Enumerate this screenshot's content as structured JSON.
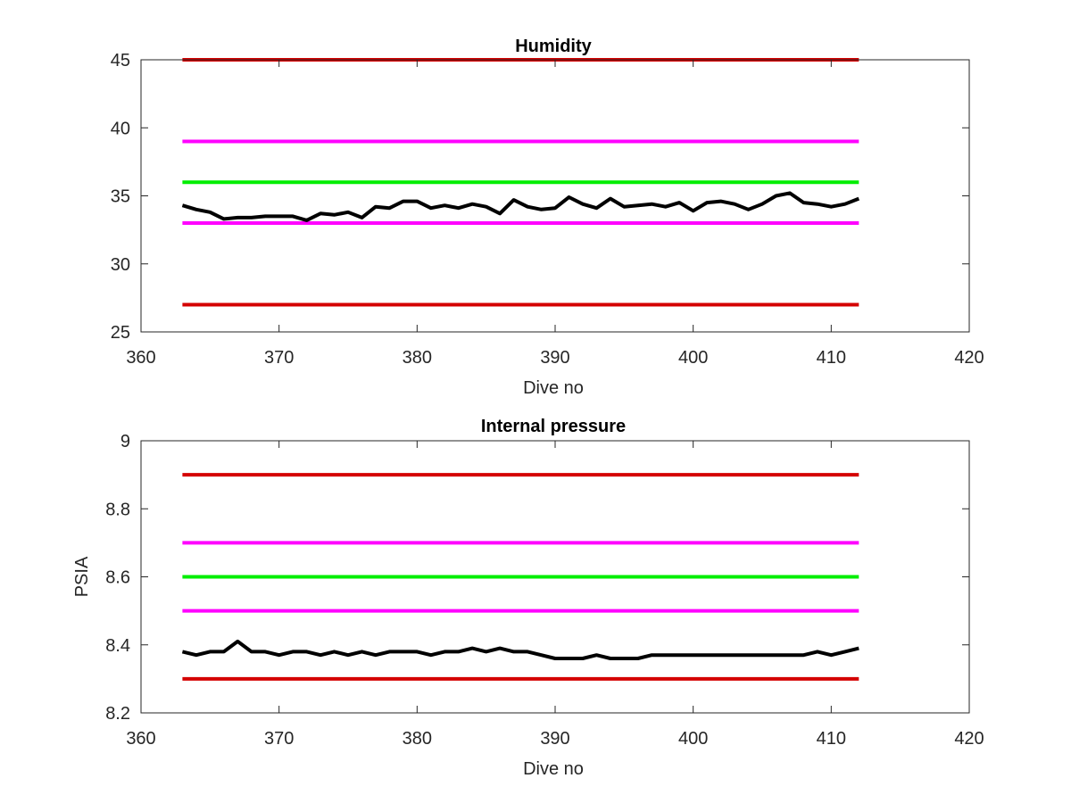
{
  "chart_data": [
    {
      "type": "line",
      "title": "Humidity",
      "xlabel": "Dive no",
      "ylabel": "",
      "xlim": [
        360,
        420
      ],
      "ylim": [
        25,
        45
      ],
      "xticks": [
        360,
        370,
        380,
        390,
        400,
        410,
        420
      ],
      "yticks": [
        25,
        30,
        35,
        40,
        45
      ],
      "grid": false,
      "series": [
        {
          "x": [
            363,
            412
          ],
          "y": [
            45,
            45
          ],
          "color": "#d40000"
        },
        {
          "x": [
            363,
            412
          ],
          "y": [
            39,
            39
          ],
          "color": "#ff00ff"
        },
        {
          "x": [
            363,
            412
          ],
          "y": [
            36,
            36
          ],
          "color": "#00ee00"
        },
        {
          "x": [
            363,
            412
          ],
          "y": [
            33,
            33
          ],
          "color": "#ff00ff"
        },
        {
          "x": [
            363,
            412
          ],
          "y": [
            27,
            27
          ],
          "color": "#d40000"
        },
        {
          "color": "#000000",
          "x": [
            363,
            364,
            365,
            366,
            367,
            368,
            369,
            370,
            371,
            372,
            373,
            374,
            375,
            376,
            377,
            378,
            379,
            380,
            381,
            382,
            383,
            384,
            385,
            386,
            387,
            388,
            389,
            390,
            391,
            392,
            393,
            394,
            395,
            396,
            397,
            398,
            399,
            400,
            401,
            402,
            403,
            404,
            405,
            406,
            407,
            408,
            409,
            410,
            411,
            412
          ],
          "y": [
            34.3,
            34.0,
            33.8,
            33.3,
            33.4,
            33.4,
            33.5,
            33.5,
            33.5,
            33.2,
            33.7,
            33.6,
            33.8,
            33.4,
            34.2,
            34.1,
            34.6,
            34.6,
            34.1,
            34.3,
            34.1,
            34.4,
            34.2,
            33.7,
            34.7,
            34.2,
            34.0,
            34.1,
            34.9,
            34.4,
            34.1,
            34.8,
            34.2,
            34.3,
            34.4,
            34.2,
            34.5,
            33.9,
            34.5,
            34.6,
            34.4,
            34.0,
            34.4,
            35.0,
            35.2,
            34.5,
            34.4,
            34.2,
            34.4,
            34.8
          ]
        }
      ]
    },
    {
      "type": "line",
      "title": "Internal pressure",
      "xlabel": "Dive no",
      "ylabel": "PSIA",
      "xlim": [
        360,
        420
      ],
      "ylim": [
        8.2,
        9
      ],
      "xticks": [
        360,
        370,
        380,
        390,
        400,
        410,
        420
      ],
      "yticks": [
        8.2,
        8.4,
        8.6,
        8.8,
        9
      ],
      "grid": false,
      "series": [
        {
          "x": [
            363,
            412
          ],
          "y": [
            8.9,
            8.9
          ],
          "color": "#d40000"
        },
        {
          "x": [
            363,
            412
          ],
          "y": [
            8.7,
            8.7
          ],
          "color": "#ff00ff"
        },
        {
          "x": [
            363,
            412
          ],
          "y": [
            8.6,
            8.6
          ],
          "color": "#00ee00"
        },
        {
          "x": [
            363,
            412
          ],
          "y": [
            8.5,
            8.5
          ],
          "color": "#ff00ff"
        },
        {
          "x": [
            363,
            412
          ],
          "y": [
            8.3,
            8.3
          ],
          "color": "#d40000"
        },
        {
          "color": "#000000",
          "x": [
            363,
            364,
            365,
            366,
            367,
            368,
            369,
            370,
            371,
            372,
            373,
            374,
            375,
            376,
            377,
            378,
            379,
            380,
            381,
            382,
            383,
            384,
            385,
            386,
            387,
            388,
            389,
            390,
            391,
            392,
            393,
            394,
            395,
            396,
            397,
            398,
            399,
            400,
            401,
            402,
            403,
            404,
            405,
            406,
            407,
            408,
            409,
            410,
            411,
            412
          ],
          "y": [
            8.38,
            8.37,
            8.38,
            8.38,
            8.41,
            8.38,
            8.38,
            8.37,
            8.38,
            8.38,
            8.37,
            8.38,
            8.37,
            8.38,
            8.37,
            8.38,
            8.38,
            8.38,
            8.37,
            8.38,
            8.38,
            8.39,
            8.38,
            8.39,
            8.38,
            8.38,
            8.37,
            8.36,
            8.36,
            8.36,
            8.37,
            8.36,
            8.36,
            8.36,
            8.37,
            8.37,
            8.37,
            8.37,
            8.37,
            8.37,
            8.37,
            8.37,
            8.37,
            8.37,
            8.37,
            8.37,
            8.38,
            8.37,
            8.38,
            8.39
          ]
        }
      ]
    }
  ]
}
